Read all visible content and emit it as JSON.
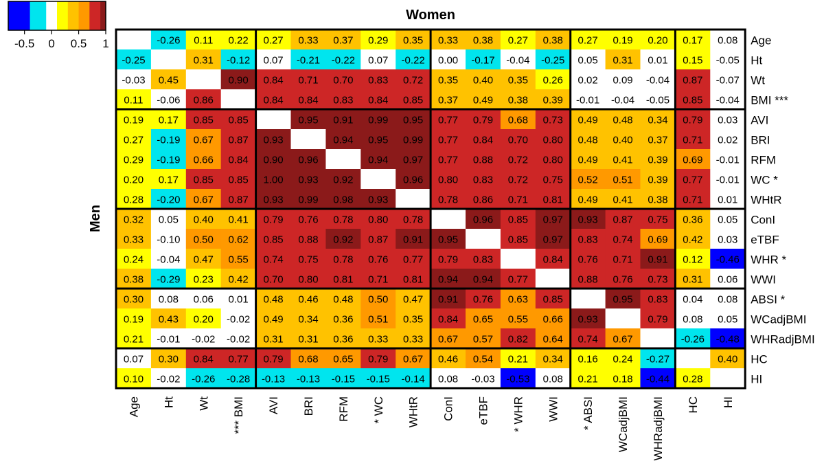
{
  "chart_data": {
    "type": "heatmap",
    "title": "Women",
    "ylabel": "Men",
    "upper_triangle_series": "Women",
    "lower_triangle_series": "Men",
    "row_labels": [
      "Age",
      "Ht",
      "Wt",
      "BMI ***",
      "AVI",
      "BRI",
      "RFM",
      "WC *",
      "WHtR",
      "ConI",
      "eTBF",
      "WHR *",
      "WWI",
      "ABSI *",
      "WCadjBMI",
      "WHRadjBMI",
      "HC",
      "HI"
    ],
    "col_labels": [
      "Age",
      "Ht",
      "Wt",
      "*** BMI",
      "AVI",
      "BRI",
      "RFM",
      "* WC",
      "WHtR",
      "ConI",
      "eTBF",
      "* WHR",
      "WWI",
      "* ABSI",
      "WCadjBMI",
      "WHRadjBMI",
      "HC",
      "HI"
    ],
    "group_boundaries_after_index": [
      3,
      8,
      12,
      15
    ],
    "matrix": [
      [
        null,
        "-0.26",
        "0.11",
        "0.22",
        "0.27",
        "0.33",
        "0.37",
        "0.29",
        "0.35",
        "0.33",
        "0.38",
        "0.27",
        "0.38",
        "0.27",
        "0.19",
        "0.20",
        "0.17",
        "0.08"
      ],
      [
        "-0.25",
        null,
        "0.31",
        "-0.12",
        "0.07",
        "-0.21",
        "-0.22",
        "0.07",
        "-0.22",
        "0.00",
        "-0.17",
        "-0.04",
        "-0.25",
        "0.05",
        "0.31",
        "0.01",
        "0.15",
        "-0.05"
      ],
      [
        "-0.03",
        "0.45",
        null,
        "0.90",
        "0.84",
        "0.71",
        "0.70",
        "0.83",
        "0.72",
        "0.35",
        "0.40",
        "0.35",
        "0.26",
        "0.02",
        "0.09",
        "-0.04",
        "0.87",
        "-0.07"
      ],
      [
        "0.11",
        "-0.06",
        "0.86",
        null,
        "0.84",
        "0.84",
        "0.83",
        "0.84",
        "0.85",
        "0.37",
        "0.49",
        "0.38",
        "0.39",
        "-0.01",
        "-0.04",
        "-0.05",
        "0.85",
        "-0.04"
      ],
      [
        "0.19",
        "0.17",
        "0.85",
        "0.85",
        null,
        "0.95",
        "0.91",
        "0.99",
        "0.95",
        "0.77",
        "0.79",
        "0.68",
        "0.73",
        "0.49",
        "0.48",
        "0.34",
        "0.79",
        "0.03"
      ],
      [
        "0.27",
        "-0.19",
        "0.67",
        "0.87",
        "0.93",
        null,
        "0.94",
        "0.95",
        "0.99",
        "0.77",
        "0.84",
        "0.70",
        "0.80",
        "0.48",
        "0.40",
        "0.37",
        "0.71",
        "0.02"
      ],
      [
        "0.29",
        "-0.19",
        "0.66",
        "0.84",
        "0.90",
        "0.96",
        null,
        "0.94",
        "0.97",
        "0.77",
        "0.88",
        "0.72",
        "0.80",
        "0.49",
        "0.41",
        "0.39",
        "0.69",
        "-0.01"
      ],
      [
        "0.20",
        "0.17",
        "0.85",
        "0.85",
        "1.00",
        "0.93",
        "0.92",
        null,
        "0.96",
        "0.80",
        "0.83",
        "0.72",
        "0.75",
        "0.52",
        "0.51",
        "0.39",
        "0.77",
        "-0.01"
      ],
      [
        "0.28",
        "-0.20",
        "0.67",
        "0.87",
        "0.93",
        "0.99",
        "0.98",
        "0.93",
        null,
        "0.78",
        "0.86",
        "0.71",
        "0.81",
        "0.49",
        "0.41",
        "0.38",
        "0.71",
        "0.01"
      ],
      [
        "0.32",
        "0.05",
        "0.40",
        "0.41",
        "0.79",
        "0.76",
        "0.78",
        "0.80",
        "0.78",
        null,
        "0.96",
        "0.85",
        "0.97",
        "0.93",
        "0.87",
        "0.75",
        "0.36",
        "0.05"
      ],
      [
        "0.33",
        "-0.10",
        "0.50",
        "0.62",
        "0.85",
        "0.88",
        "0.92",
        "0.87",
        "0.91",
        "0.95",
        null,
        "0.85",
        "0.97",
        "0.83",
        "0.74",
        "0.69",
        "0.42",
        "0.03"
      ],
      [
        "0.24",
        "-0.04",
        "0.47",
        "0.55",
        "0.74",
        "0.75",
        "0.78",
        "0.76",
        "0.77",
        "0.79",
        "0.83",
        null,
        "0.84",
        "0.76",
        "0.71",
        "0.91",
        "0.12",
        "-0.46"
      ],
      [
        "0.38",
        "-0.29",
        "0.23",
        "0.42",
        "0.70",
        "0.80",
        "0.81",
        "0.71",
        "0.81",
        "0.94",
        "0.94",
        "0.77",
        null,
        "0.88",
        "0.76",
        "0.73",
        "0.31",
        "0.06"
      ],
      [
        "0.30",
        "0.08",
        "0.06",
        "0.01",
        "0.48",
        "0.46",
        "0.48",
        "0.50",
        "0.47",
        "0.91",
        "0.76",
        "0.63",
        "0.85",
        null,
        "0.95",
        "0.83",
        "0.04",
        "0.08"
      ],
      [
        "0.19",
        "0.43",
        "0.20",
        "-0.02",
        "0.49",
        "0.34",
        "0.36",
        "0.51",
        "0.35",
        "0.84",
        "0.65",
        "0.55",
        "0.66",
        "0.93",
        null,
        "0.79",
        "0.08",
        "0.05"
      ],
      [
        "0.21",
        "-0.01",
        "-0.02",
        "-0.02",
        "0.31",
        "0.31",
        "0.36",
        "0.33",
        "0.33",
        "0.67",
        "0.57",
        "0.82",
        "0.64",
        "0.74",
        "0.67",
        null,
        "-0.26",
        "-0.48"
      ],
      [
        "0.07",
        "0.30",
        "0.84",
        "0.77",
        "0.79",
        "0.68",
        "0.65",
        "0.79",
        "0.67",
        "0.46",
        "0.54",
        "0.21",
        "0.34",
        "0.16",
        "0.24",
        "-0.27",
        null,
        "0.40"
      ],
      [
        "0.10",
        "-0.02",
        "-0.26",
        "-0.28",
        "-0.13",
        "-0.13",
        "-0.15",
        "-0.15",
        "-0.14",
        "0.08",
        "-0.03",
        "-0.53",
        "0.08",
        "0.21",
        "0.18",
        "-0.44",
        "0.28",
        null
      ]
    ],
    "colorbar": {
      "ticks": [
        "-0.5",
        "0",
        "0.5",
        "1"
      ],
      "bins": [
        {
          "min": -1.0,
          "max": -0.4,
          "color": "#0000ff"
        },
        {
          "min": -0.4,
          "max": -0.1,
          "color": "#00e5ee"
        },
        {
          "min": -0.1,
          "max": 0.1,
          "color": "#ffffff"
        },
        {
          "min": 0.1,
          "max": 0.3,
          "color": "#ffff00"
        },
        {
          "min": 0.3,
          "max": 0.5,
          "color": "#ffc200"
        },
        {
          "min": 0.5,
          "max": 0.7,
          "color": "#ff9900"
        },
        {
          "min": 0.7,
          "max": 0.9,
          "color": "#cd2626"
        },
        {
          "min": 0.9,
          "max": 1.01,
          "color": "#8b1a1a"
        }
      ]
    },
    "grid": false,
    "legend": "top-left"
  }
}
